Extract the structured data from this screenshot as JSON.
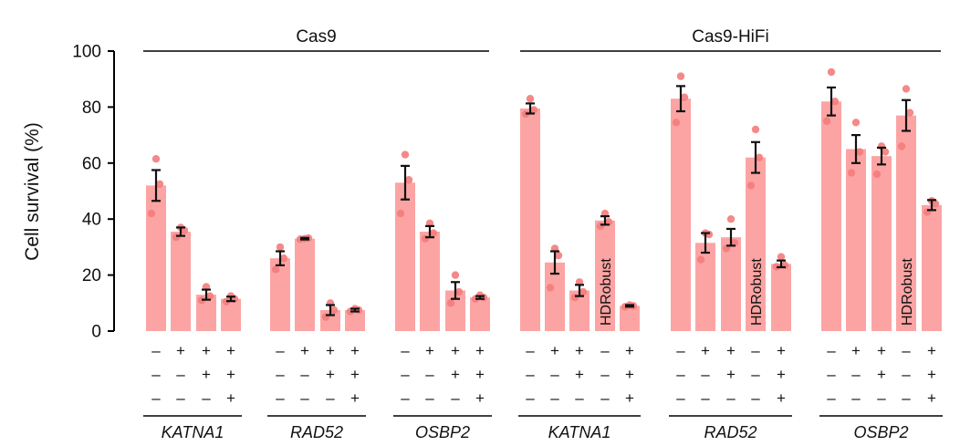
{
  "chart_data": {
    "type": "bar",
    "ylabel": "Cell survival (%)",
    "ylim": [
      0,
      100
    ],
    "yticks": [
      0,
      20,
      40,
      60,
      80,
      100
    ],
    "groups": [
      {
        "label": "Cas9"
      },
      {
        "label": "Cas9-HiFi"
      }
    ],
    "bars": [
      {
        "label": "Cas9 KATNA1 1",
        "value": 52,
        "error": 5.5,
        "points": [
          61.5,
          42,
          52.5
        ],
        "group": 0,
        "gene": "KATNA1",
        "signs": [
          "–",
          "–",
          "–"
        ]
      },
      {
        "label": "Cas9 KATNA1 2",
        "value": 35.5,
        "error": 1.5,
        "points": [
          37,
          33.5,
          36
        ],
        "group": 0,
        "gene": "KATNA1",
        "signs": [
          "+",
          "–",
          "–"
        ]
      },
      {
        "label": "Cas9 KATNA1 3",
        "value": 13,
        "error": 1.8,
        "points": [
          15.8,
          11,
          12.5
        ],
        "group": 0,
        "gene": "KATNA1",
        "signs": [
          "+",
          "+",
          "–"
        ]
      },
      {
        "label": "Cas9 KATNA1 4",
        "value": 11.5,
        "error": 0.8,
        "points": [
          12.5,
          10.5,
          11.5
        ],
        "group": 0,
        "gene": "KATNA1",
        "signs": [
          "+",
          "+",
          "+"
        ]
      },
      {
        "label": "Cas9 RAD52 1",
        "value": 26,
        "error": 2.5,
        "points": [
          30,
          22,
          26
        ],
        "group": 0,
        "gene": "RAD52",
        "signs": [
          "–",
          "–",
          "–"
        ]
      },
      {
        "label": "Cas9 RAD52 2",
        "value": 33,
        "error": 0.3,
        "points": [
          33,
          32.8,
          33.2
        ],
        "group": 0,
        "gene": "RAD52",
        "signs": [
          "+",
          "–",
          "–"
        ]
      },
      {
        "label": "Cas9 RAD52 3",
        "value": 7.5,
        "error": 1.8,
        "points": [
          10,
          5,
          7.5
        ],
        "group": 0,
        "gene": "RAD52",
        "signs": [
          "+",
          "+",
          "–"
        ]
      },
      {
        "label": "Cas9 RAD52 4",
        "value": 7.5,
        "error": 0.5,
        "points": [
          8,
          7,
          7.5
        ],
        "group": 0,
        "gene": "RAD52",
        "signs": [
          "+",
          "+",
          "+"
        ]
      },
      {
        "label": "Cas9 OSBP2 1",
        "value": 53,
        "error": 6,
        "points": [
          63,
          42,
          54
        ],
        "group": 0,
        "gene": "OSBP2",
        "signs": [
          "–",
          "–",
          "–"
        ]
      },
      {
        "label": "Cas9 OSBP2 2",
        "value": 35.5,
        "error": 2,
        "points": [
          38.5,
          33,
          35
        ],
        "group": 0,
        "gene": "OSBP2",
        "signs": [
          "+",
          "–",
          "–"
        ]
      },
      {
        "label": "Cas9 OSBP2 3",
        "value": 14.5,
        "error": 3,
        "points": [
          20,
          10,
          14
        ],
        "group": 0,
        "gene": "OSBP2",
        "signs": [
          "+",
          "+",
          "–"
        ]
      },
      {
        "label": "Cas9 OSBP2 4",
        "value": 12,
        "error": 0.5,
        "points": [
          12.8,
          11.5,
          12
        ],
        "group": 0,
        "gene": "OSBP2",
        "signs": [
          "+",
          "+",
          "+"
        ]
      },
      {
        "label": "Cas9-HiFi KATNA1 1",
        "value": 79.5,
        "error": 1.8,
        "points": [
          83,
          77.5,
          79
        ],
        "group": 1,
        "gene": "KATNA1",
        "signs": [
          "–",
          "–",
          "–"
        ]
      },
      {
        "label": "Cas9-HiFi KATNA1 2",
        "value": 24.5,
        "error": 4,
        "points": [
          29.5,
          15.5,
          27
        ],
        "group": 1,
        "gene": "KATNA1",
        "signs": [
          "+",
          "–",
          "–"
        ]
      },
      {
        "label": "Cas9-HiFi KATNA1 3",
        "value": 14.5,
        "error": 2,
        "points": [
          17.5,
          12,
          14
        ],
        "group": 1,
        "gene": "KATNA1",
        "signs": [
          "+",
          "+",
          "–"
        ]
      },
      {
        "label": "Cas9-HiFi KATNA1 4",
        "value": 39.5,
        "error": 1.5,
        "points": [
          42,
          37.5,
          39
        ],
        "group": 1,
        "gene": "KATNA1",
        "note": "HDRobust",
        "signs": [
          "–",
          "–",
          "–"
        ]
      },
      {
        "label": "Cas9-HiFi KATNA1 5",
        "value": 9,
        "error": 0.3,
        "points": [
          9.3,
          8.7,
          9
        ],
        "group": 1,
        "gene": "KATNA1",
        "signs": [
          "+",
          "+",
          "+"
        ]
      },
      {
        "label": "Cas9-HiFi RAD52 1",
        "value": 83,
        "error": 4.5,
        "points": [
          91,
          74.5,
          83.5
        ],
        "group": 1,
        "gene": "RAD52",
        "signs": [
          "–",
          "–",
          "–"
        ]
      },
      {
        "label": "Cas9-HiFi RAD52 2",
        "value": 31.5,
        "error": 3.5,
        "points": [
          35,
          25.5,
          34.5
        ],
        "group": 1,
        "gene": "RAD52",
        "signs": [
          "+",
          "–",
          "–"
        ]
      },
      {
        "label": "Cas9-HiFi RAD52 3",
        "value": 33.5,
        "error": 3,
        "points": [
          40,
          29.5,
          31.5
        ],
        "group": 1,
        "gene": "RAD52",
        "signs": [
          "+",
          "+",
          "–"
        ]
      },
      {
        "label": "Cas9-HiFi RAD52 4",
        "value": 62,
        "error": 5.5,
        "points": [
          72,
          52,
          62
        ],
        "group": 1,
        "gene": "RAD52",
        "note": "HDRobust",
        "signs": [
          "–",
          "–",
          "–"
        ]
      },
      {
        "label": "Cas9-HiFi RAD52 5",
        "value": 24,
        "error": 1.2,
        "points": [
          26.5,
          23,
          23.5
        ],
        "group": 1,
        "gene": "RAD52",
        "signs": [
          "+",
          "+",
          "+"
        ]
      },
      {
        "label": "Cas9-HiFi OSBP2 1",
        "value": 82,
        "error": 5,
        "points": [
          92.5,
          75,
          82
        ],
        "group": 1,
        "gene": "OSBP2",
        "signs": [
          "–",
          "–",
          "–"
        ]
      },
      {
        "label": "Cas9-HiFi OSBP2 2",
        "value": 65,
        "error": 5,
        "points": [
          74.5,
          56.5,
          64
        ],
        "group": 1,
        "gene": "OSBP2",
        "signs": [
          "+",
          "–",
          "–"
        ]
      },
      {
        "label": "Cas9-HiFi OSBP2 3",
        "value": 62.5,
        "error": 3,
        "points": [
          66,
          56,
          64
        ],
        "group": 1,
        "gene": "OSBP2",
        "signs": [
          "+",
          "+",
          "–"
        ]
      },
      {
        "label": "Cas9-HiFi OSBP2 4",
        "value": 77,
        "error": 5.5,
        "points": [
          86.5,
          66,
          78
        ],
        "group": 1,
        "gene": "OSBP2",
        "note": "HDRobust",
        "signs": [
          "–",
          "–",
          "–"
        ]
      },
      {
        "label": "Cas9-HiFi OSBP2 5",
        "value": 45,
        "error": 1.8,
        "points": [
          46.5,
          42.5,
          45.5
        ],
        "group": 1,
        "gene": "OSBP2",
        "signs": [
          "+",
          "+",
          "+"
        ]
      }
    ],
    "gene_labels": [
      "KATNA1",
      "RAD52",
      "OSBP2",
      "KATNA1",
      "RAD52",
      "OSBP2"
    ]
  }
}
